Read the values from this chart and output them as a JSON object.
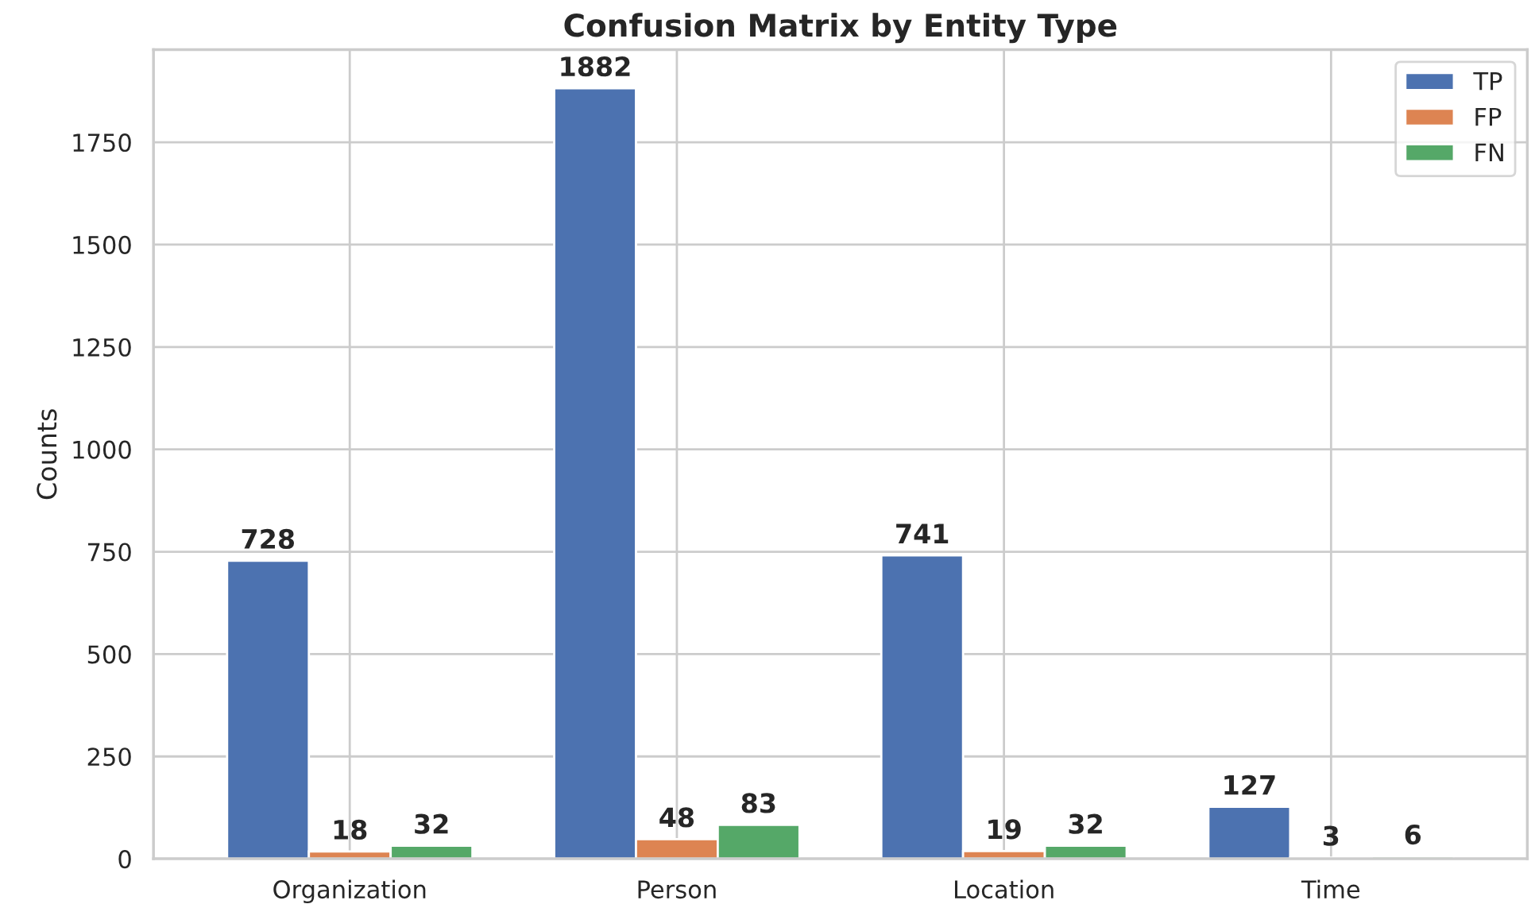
{
  "chart_data": {
    "type": "bar",
    "title": "Confusion Matrix by Entity Type",
    "ylabel": "Counts",
    "categories": [
      "Organization",
      "Person",
      "Location",
      "Time"
    ],
    "series": [
      {
        "name": "TP",
        "color": "#4c72b0",
        "values": [
          728,
          1882,
          741,
          127
        ]
      },
      {
        "name": "FP",
        "color": "#dd8452",
        "values": [
          18,
          48,
          19,
          3
        ]
      },
      {
        "name": "FN",
        "color": "#55a868",
        "values": [
          32,
          83,
          32,
          6
        ]
      }
    ],
    "ylim": [
      0,
      1976
    ],
    "yticks": [
      0,
      250,
      500,
      750,
      1000,
      1250,
      1500,
      1750
    ],
    "grid": true,
    "legend": "top right",
    "data_labels": true
  }
}
